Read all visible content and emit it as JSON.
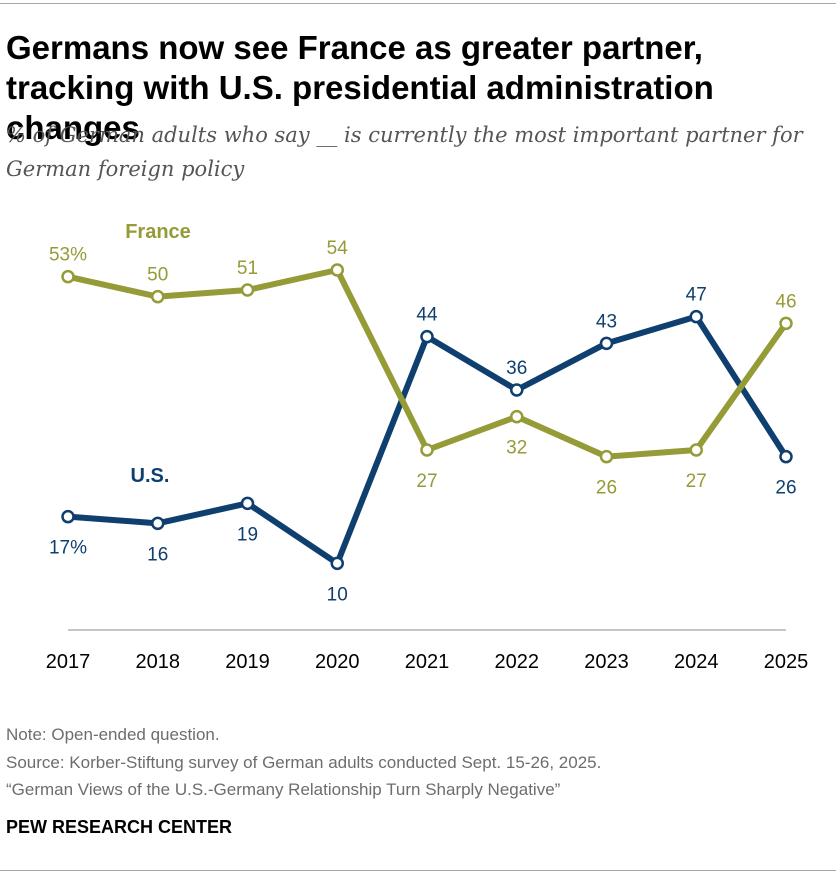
{
  "title": "Germans now see France as greater partner, tracking with U.S. presidential administration changes",
  "subtitle": "% of German adults who say __ is currently the most important partner for German foreign policy",
  "notes": {
    "note": "Note: Open-ended question.",
    "source": "Source: Korber-Stiftung survey of German adults conducted Sept. 15-26, 2025.",
    "report": "“German Views of the U.S.-Germany Relationship Turn Sharply Negative”"
  },
  "brand": "PEW RESEARCH CENTER",
  "colors": {
    "france": "#959b36",
    "us": "#0f3f6e",
    "axis": "#b3b3b3"
  },
  "chart_data": {
    "type": "line",
    "x": [
      "2017",
      "2018",
      "2019",
      "2020",
      "2021",
      "2022",
      "2023",
      "2024",
      "2025"
    ],
    "ylim": [
      0,
      60
    ],
    "grid": false,
    "series": [
      {
        "name": "France",
        "values": [
          53,
          50,
          51,
          54,
          27,
          32,
          26,
          27,
          46
        ],
        "labels": [
          "53%",
          "50",
          "51",
          "54",
          "27",
          "32",
          "26",
          "27",
          "46"
        ],
        "label_pos": [
          "above",
          "above",
          "above",
          "above",
          "below",
          "below",
          "below",
          "below",
          "above"
        ]
      },
      {
        "name": "U.S.",
        "values": [
          17,
          16,
          19,
          10,
          44,
          36,
          43,
          47,
          26
        ],
        "labels": [
          "17%",
          "16",
          "19",
          "10",
          "44",
          "36",
          "43",
          "47",
          "26"
        ],
        "label_pos": [
          "below",
          "below",
          "below",
          "below",
          "above",
          "above",
          "above",
          "above",
          "below"
        ]
      }
    ]
  }
}
